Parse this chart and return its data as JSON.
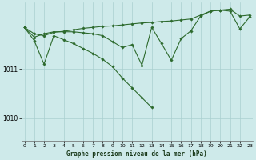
{
  "title": "Graphe pression niveau de la mer (hPa)",
  "bg_color": "#ceeaea",
  "grid_color": "#aacfcf",
  "line_color": "#2d6a2d",
  "x_ticks": [
    0,
    1,
    2,
    3,
    4,
    5,
    6,
    7,
    8,
    9,
    10,
    11,
    12,
    13,
    14,
    15,
    16,
    17,
    18,
    19,
    20,
    21,
    22,
    23
  ],
  "ylim": [
    1009.55,
    1012.35
  ],
  "yticks": [
    1010,
    1011
  ],
  "line1": [
    1011.85,
    1011.72,
    1011.68,
    1011.75,
    1011.77,
    1011.8,
    1011.83,
    1011.85,
    1011.87,
    1011.88,
    1011.9,
    1011.92,
    1011.94,
    1011.95,
    1011.97,
    1011.98,
    1012.0,
    1012.02,
    1012.1,
    1012.18,
    1012.2,
    1012.22,
    1012.08,
    1012.1
  ],
  "line2": [
    1011.85,
    1011.65,
    1011.72,
    1011.76,
    1011.76,
    1011.76,
    1011.74,
    1011.72,
    1011.68,
    1011.56,
    1011.44,
    1011.5,
    1011.08,
    1011.85,
    1011.52,
    1011.18,
    1011.62,
    1011.78,
    1012.08,
    1012.18,
    1012.2,
    1012.18,
    1011.82,
    1012.06
  ],
  "line3": [
    1011.85,
    1011.58,
    1011.1,
    1011.68,
    1011.6,
    1011.52,
    1011.42,
    1011.32,
    1011.2,
    1011.05,
    1010.82,
    1010.62,
    1010.42,
    1010.22,
    null,
    null,
    null,
    null,
    null,
    null,
    null,
    null,
    null,
    null
  ]
}
